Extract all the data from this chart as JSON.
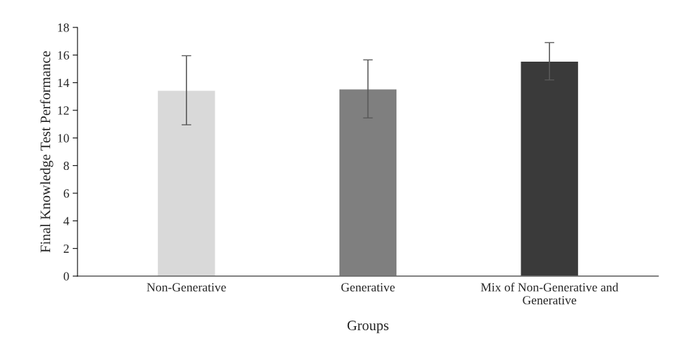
{
  "chart_data": {
    "type": "bar",
    "xlabel": "Groups",
    "ylabel": "Final Knowledge Test Performance",
    "categories": [
      "Non-Generative",
      "Generative",
      "Mix of Non-Generative and\nGenerative"
    ],
    "values": [
      13.45,
      13.55,
      15.55
    ],
    "errors": [
      2.5,
      2.1,
      1.35
    ],
    "colors": [
      "#d9d9d9",
      "#7f7f7f",
      "#3a3a3a"
    ],
    "ylim": [
      0,
      18
    ],
    "yticks": [
      0,
      2,
      4,
      6,
      8,
      10,
      12,
      14,
      16,
      18
    ],
    "grid": false,
    "legend": false
  }
}
